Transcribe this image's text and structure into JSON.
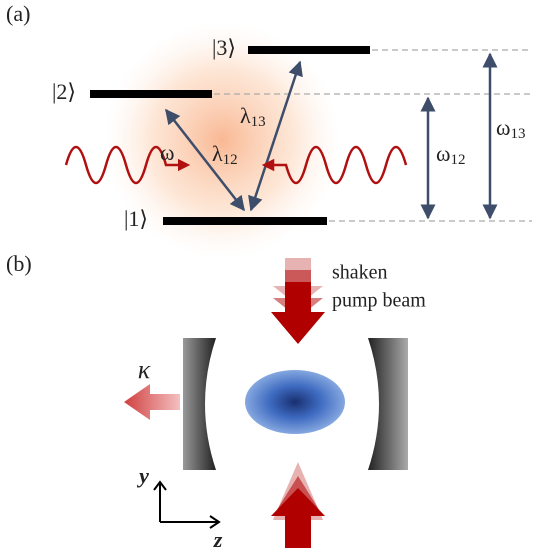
{
  "panel_a": {
    "tag": "(a)",
    "levels": [
      "|3⟩",
      "|2⟩",
      "|1⟩"
    ],
    "lambda13": {
      "symbol": "λ",
      "sub": "13"
    },
    "lambda12": {
      "symbol": "λ",
      "sub": "12"
    },
    "omega": "ω",
    "omega12": {
      "symbol": "ω",
      "sub": "12"
    },
    "omega13": {
      "symbol": "ω",
      "sub": "13"
    }
  },
  "panel_b": {
    "tag": "(b)",
    "pump_label": [
      "shaken",
      "pump beam"
    ],
    "kappa": "κ",
    "axis_y": "y",
    "axis_z": "z"
  }
}
